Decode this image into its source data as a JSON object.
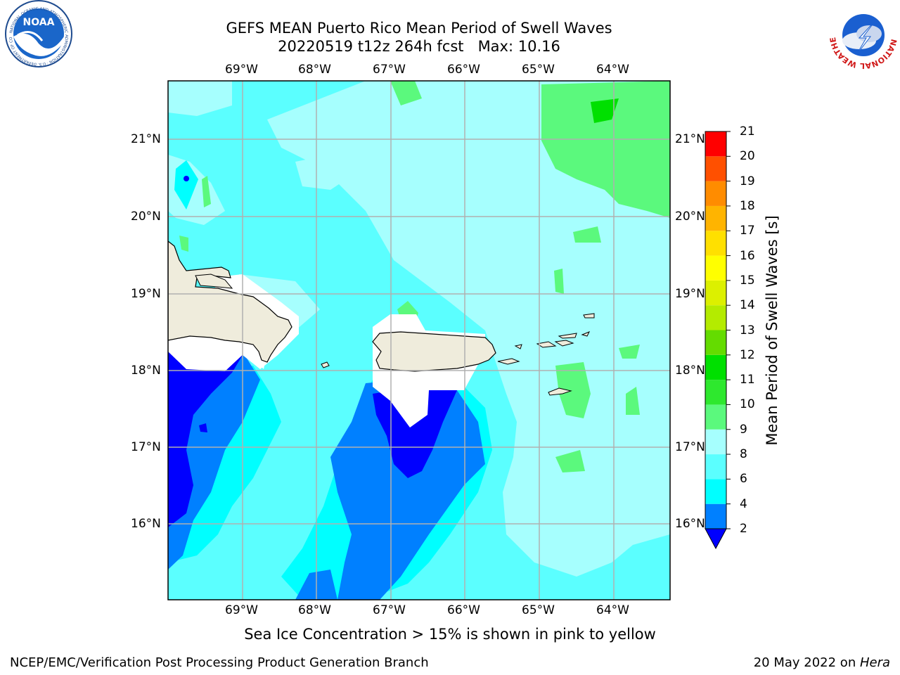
{
  "header": {
    "title_line1": "GEFS MEAN Puerto Rico Mean Period of Swell Waves",
    "title_line2": "20220519 t12z 264h fcst   Max: 10.16"
  },
  "logos": {
    "left": "noaa-logo",
    "right": "national-weather-service-logo",
    "left_text": "NOAA",
    "left_ring_text": "NATIONAL OCEANIC AND ATMOSPHERIC ADMINISTRATION · U.S. DEPARTMENT OF COMMERCE",
    "right_ring_text": "NATIONAL WEATHER SERVICE"
  },
  "map": {
    "lon_labels": [
      "69°W",
      "68°W",
      "67°W",
      "66°W",
      "65°W",
      "64°W"
    ],
    "lat_labels": [
      "21°N",
      "20°N",
      "19°N",
      "18°N",
      "17°N",
      "16°N"
    ],
    "land_color": "#efecdc",
    "grid_color": "#b0b0b0"
  },
  "colorbar": {
    "title": "Mean Period of Swell Waves [s]",
    "ticks": [
      "2",
      "4",
      "6",
      "8",
      "9",
      "10",
      "11",
      "12",
      "13",
      "14",
      "15",
      "16",
      "17",
      "18",
      "19",
      "20",
      "21"
    ],
    "colors": [
      "#0000ff",
      "#0080ff",
      "#00ffff",
      "#5bffff",
      "#a6fffe",
      "#5bf97d",
      "#2ee82e",
      "#00e000",
      "#64dc00",
      "#b4eb00",
      "#dcf000",
      "#ffff00",
      "#ffe000",
      "#ffb400",
      "#ff8c00",
      "#ff5000",
      "#ff0000"
    ]
  },
  "caption": "Sea Ice Concentration > 15% is shown in pink to yellow",
  "footer": {
    "left": "NCEP/EMC/Verification Post Processing Product Generation Branch",
    "right_date": "20 May 2022 on ",
    "right_host": "Hera"
  }
}
